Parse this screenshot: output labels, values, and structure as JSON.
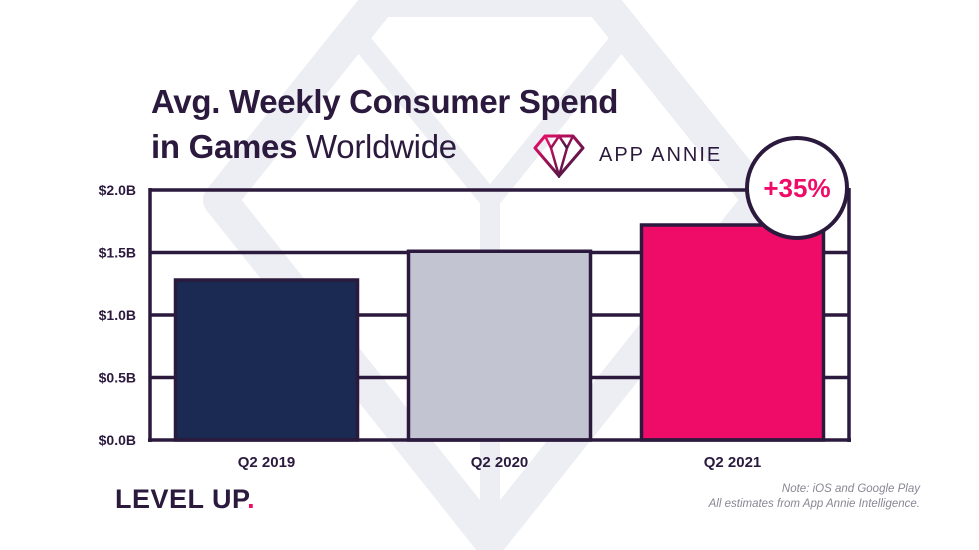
{
  "title": {
    "line1": "Avg. Weekly Consumer Spend",
    "line2_bold": "in Games",
    "line2_regular": "Worldwide"
  },
  "brand": {
    "name": "APP ANNIE",
    "icon": "diamond-icon"
  },
  "badge": {
    "text": "+35%"
  },
  "footer": {
    "logo_text": "LEVEL UP",
    "logo_dot": ".",
    "note_line1": "Note: iOS and Google Play",
    "note_line2": "All estimates from App Annie Intelligence."
  },
  "colors": {
    "text_dark": "#2b1a3d",
    "accent": "#ef0c69",
    "navy": "#1b2a52",
    "gray": "#c3c4d1",
    "watermark": "#e9ebf0"
  },
  "chart_data": {
    "type": "bar",
    "categories": [
      "Q2 2019",
      "Q2 2020",
      "Q2 2021"
    ],
    "values": [
      1.28,
      1.51,
      1.72
    ],
    "bar_colors": [
      "#1b2a52",
      "#c3c4d1",
      "#ef0c69"
    ],
    "yticks": [
      0,
      0.5,
      1.0,
      1.5,
      2.0
    ],
    "ytick_labels": [
      "$0.0B",
      "$0.5B",
      "$1.0B",
      "$1.5B",
      "$2.0B"
    ],
    "ylim": [
      0,
      2.0
    ],
    "xlabel": "",
    "ylabel": "",
    "grid": true,
    "annotation": "+35%"
  }
}
